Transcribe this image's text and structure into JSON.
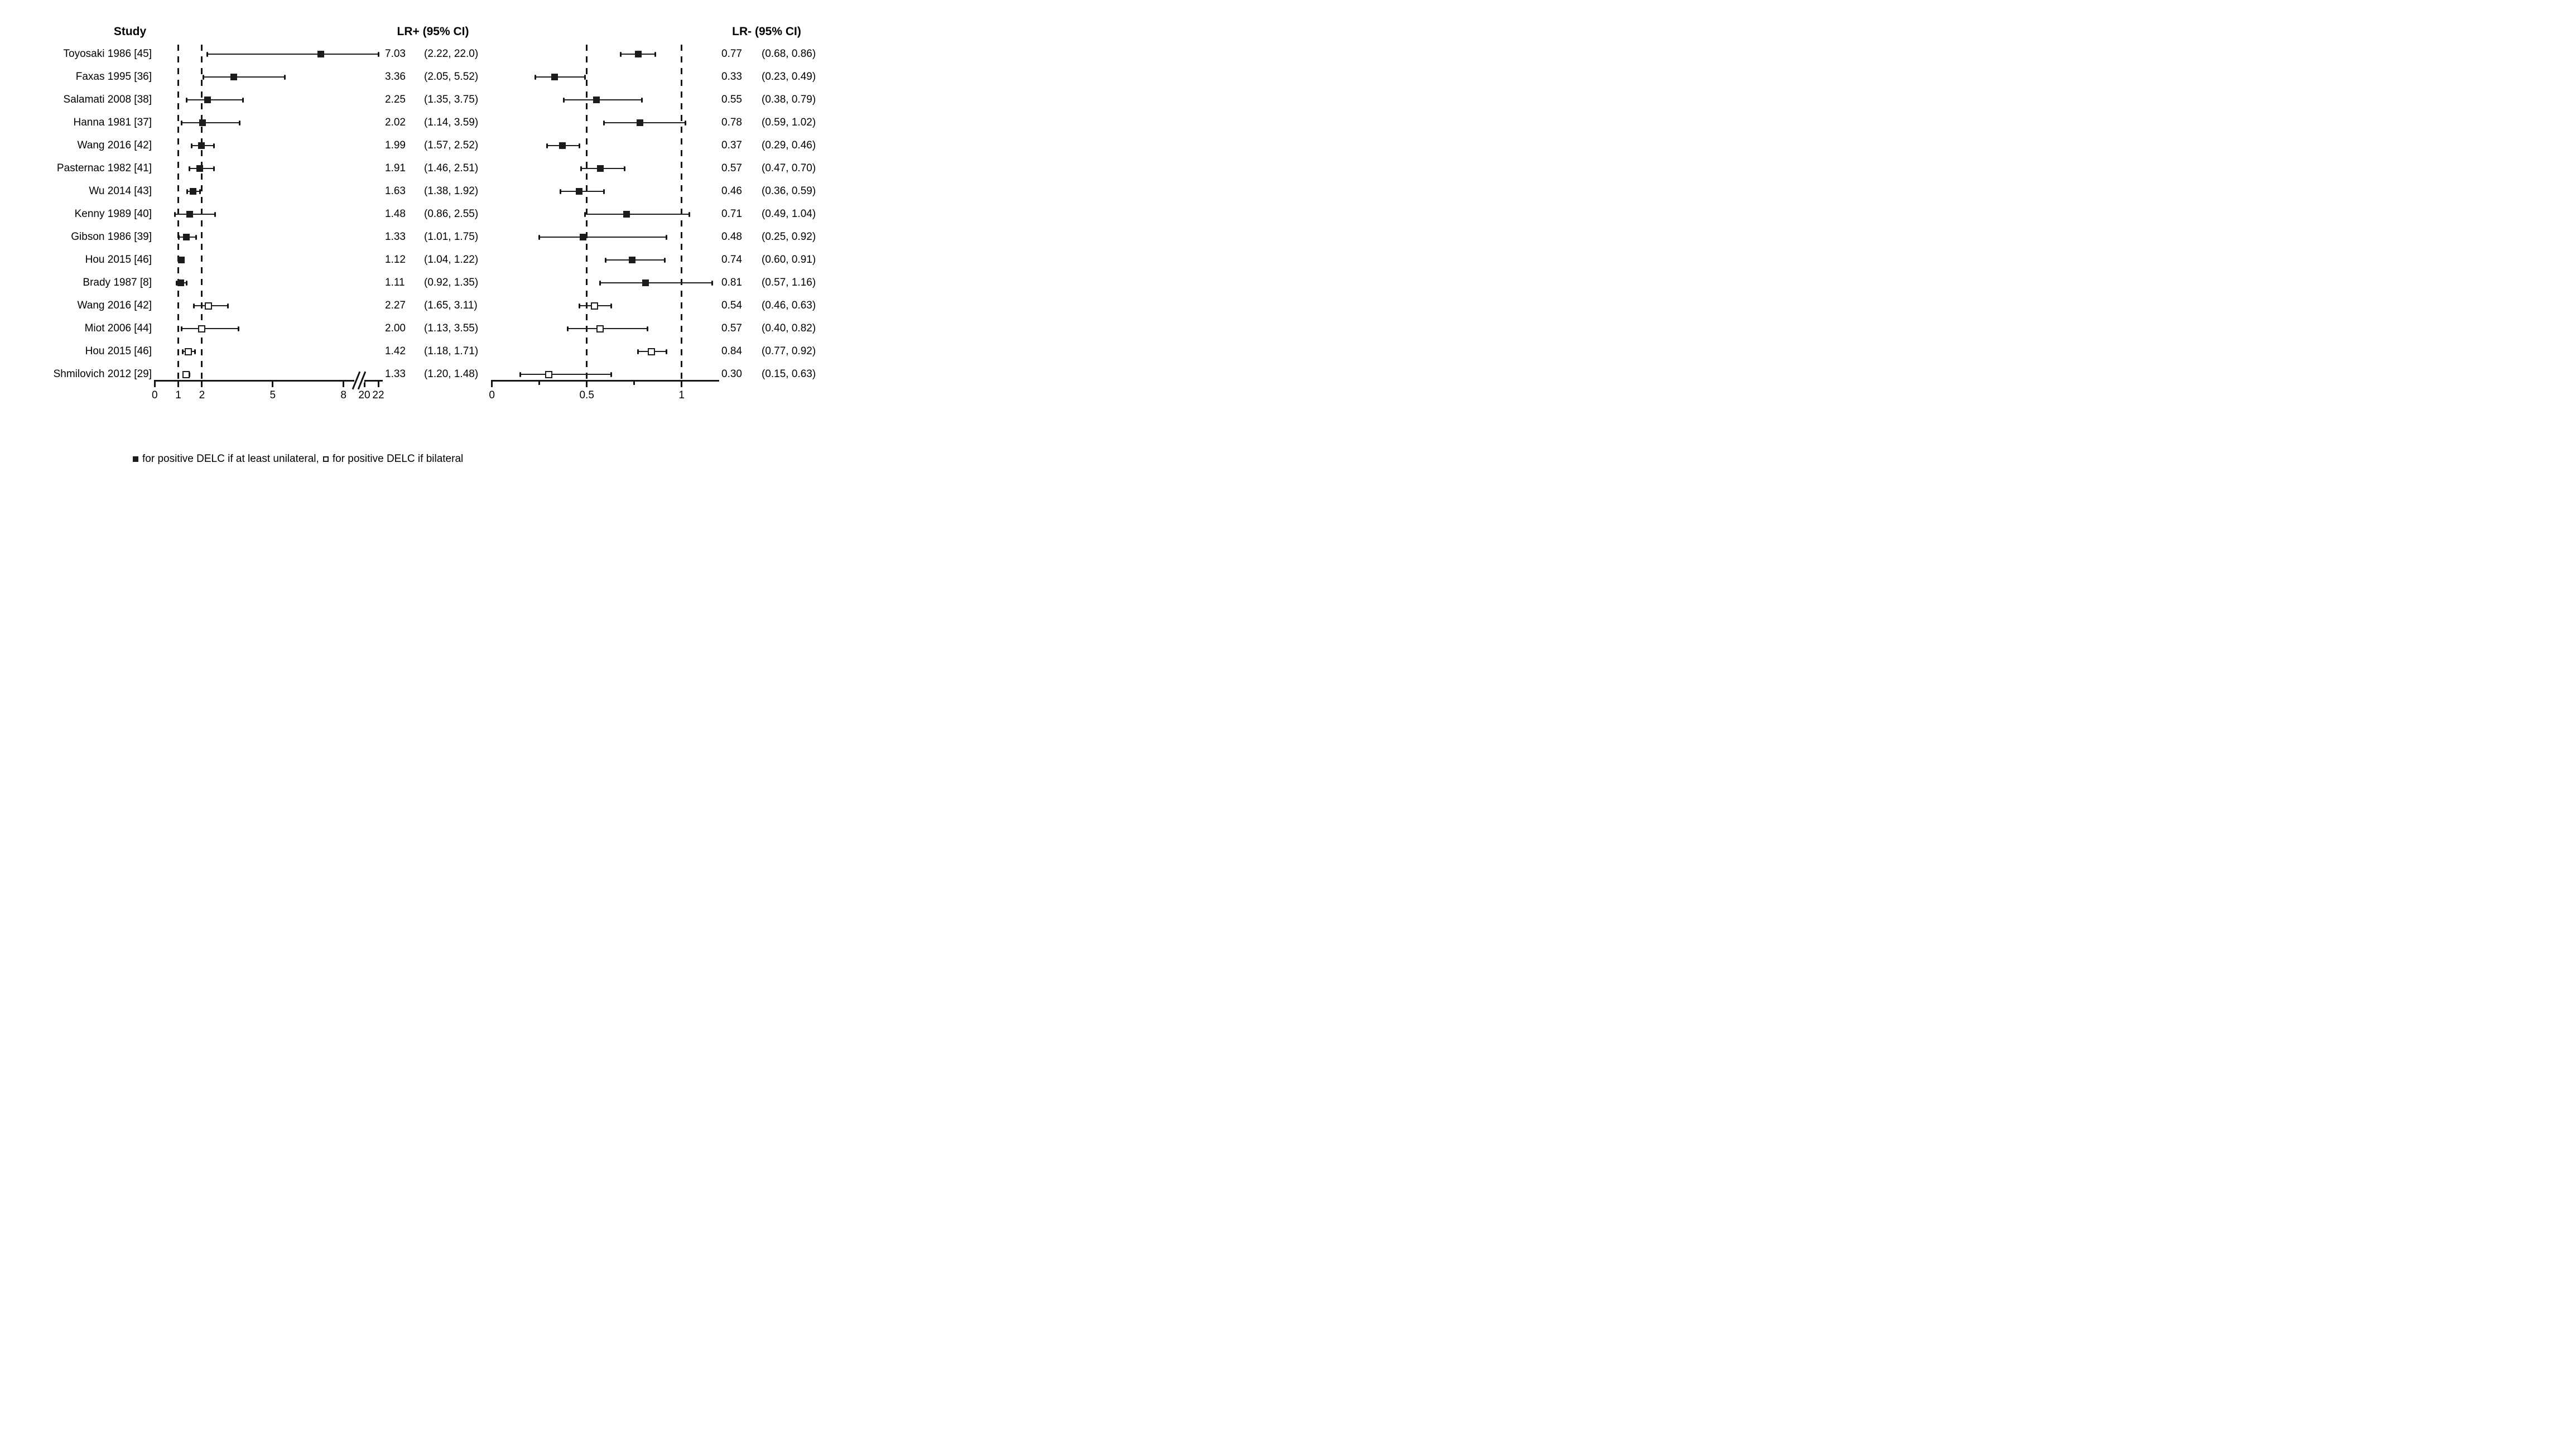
{
  "colors": {
    "ink": "#141414",
    "marker_fill": "#1c1c1c",
    "background": "#ffffff"
  },
  "legend": {
    "filled_text": "for positive DELC if at least unilateral,",
    "open_text": "for positive DELC if bilateral"
  },
  "chart_data": {
    "type": "forest",
    "orientation": "horizontal",
    "study_header": "Study",
    "panels": {
      "lr_pos": {
        "header": "LR+ (95% CI)",
        "axis_ticks": [
          {
            "v": 0,
            "label": "0",
            "major": true
          },
          {
            "v": 1,
            "label": "1",
            "major": true
          },
          {
            "v": 2,
            "label": "2",
            "major": true
          },
          {
            "v": 5,
            "label": "5",
            "major": true
          },
          {
            "v": 8,
            "label": "8",
            "major": true
          },
          {
            "v": 20,
            "label": "20",
            "major": true
          },
          {
            "v": 22,
            "label": "22",
            "major": true
          }
        ],
        "axis_break": {
          "between": [
            8,
            20
          ]
        },
        "reference_lines": [
          1,
          2
        ]
      },
      "lr_neg": {
        "header": "LR- (95% CI)",
        "axis_ticks": [
          {
            "v": 0,
            "label": "0",
            "major": true
          },
          {
            "v": 0.25,
            "major": false
          },
          {
            "v": 0.5,
            "label": "0.5",
            "major": true
          },
          {
            "v": 0.75,
            "major": false
          },
          {
            "v": 1,
            "label": "1",
            "major": true
          }
        ],
        "reference_lines": [
          0.5,
          1
        ]
      }
    },
    "studies": [
      {
        "name": "Toyosaki 1986 [45]",
        "marker": "filled",
        "lr_pos": {
          "est": 7.03,
          "lo": 2.22,
          "hi": 22.0,
          "est_text": "7.03",
          "ci_text": "(2.22, 22.0)"
        },
        "lr_neg": {
          "est": 0.77,
          "lo": 0.68,
          "hi": 0.86,
          "est_text": "0.77",
          "ci_text": "(0.68, 0.86)"
        }
      },
      {
        "name": "Faxas 1995 [36]",
        "marker": "filled",
        "lr_pos": {
          "est": 3.36,
          "lo": 2.05,
          "hi": 5.52,
          "est_text": "3.36",
          "ci_text": "(2.05, 5.52)"
        },
        "lr_neg": {
          "est": 0.33,
          "lo": 0.23,
          "hi": 0.49,
          "est_text": "0.33",
          "ci_text": "(0.23, 0.49)"
        }
      },
      {
        "name": "Salamati 2008 [38]",
        "marker": "filled",
        "lr_pos": {
          "est": 2.25,
          "lo": 1.35,
          "hi": 3.75,
          "est_text": "2.25",
          "ci_text": "(1.35, 3.75)"
        },
        "lr_neg": {
          "est": 0.55,
          "lo": 0.38,
          "hi": 0.79,
          "est_text": "0.55",
          "ci_text": "(0.38, 0.79)"
        }
      },
      {
        "name": "Hanna 1981 [37]",
        "marker": "filled",
        "lr_pos": {
          "est": 2.02,
          "lo": 1.14,
          "hi": 3.59,
          "est_text": "2.02",
          "ci_text": "(1.14, 3.59)"
        },
        "lr_neg": {
          "est": 0.78,
          "lo": 0.59,
          "hi": 1.02,
          "est_text": "0.78",
          "ci_text": "(0.59, 1.02)"
        }
      },
      {
        "name": "Wang 2016 [42]",
        "marker": "filled",
        "lr_pos": {
          "est": 1.99,
          "lo": 1.57,
          "hi": 2.52,
          "est_text": "1.99",
          "ci_text": "(1.57, 2.52)"
        },
        "lr_neg": {
          "est": 0.37,
          "lo": 0.29,
          "hi": 0.46,
          "est_text": "0.37",
          "ci_text": "(0.29, 0.46)"
        }
      },
      {
        "name": "Pasternac 1982 [41]",
        "marker": "filled",
        "lr_pos": {
          "est": 1.91,
          "lo": 1.46,
          "hi": 2.51,
          "est_text": "1.91",
          "ci_text": "(1.46, 2.51)"
        },
        "lr_neg": {
          "est": 0.57,
          "lo": 0.47,
          "hi": 0.7,
          "est_text": "0.57",
          "ci_text": "(0.47, 0.70)"
        }
      },
      {
        "name": "Wu 2014 [43]",
        "marker": "filled",
        "lr_pos": {
          "est": 1.63,
          "lo": 1.38,
          "hi": 1.92,
          "est_text": "1.63",
          "ci_text": "(1.38, 1.92)"
        },
        "lr_neg": {
          "est": 0.46,
          "lo": 0.36,
          "hi": 0.59,
          "est_text": "0.46",
          "ci_text": "(0.36, 0.59)"
        }
      },
      {
        "name": "Kenny 1989 [40]",
        "marker": "filled",
        "lr_pos": {
          "est": 1.48,
          "lo": 0.86,
          "hi": 2.55,
          "est_text": "1.48",
          "ci_text": "(0.86, 2.55)"
        },
        "lr_neg": {
          "est": 0.71,
          "lo": 0.49,
          "hi": 1.04,
          "est_text": "0.71",
          "ci_text": "(0.49, 1.04)"
        }
      },
      {
        "name": "Gibson 1986 [39]",
        "marker": "filled",
        "lr_pos": {
          "est": 1.33,
          "lo": 1.01,
          "hi": 1.75,
          "est_text": "1.33",
          "ci_text": "(1.01, 1.75)"
        },
        "lr_neg": {
          "est": 0.48,
          "lo": 0.25,
          "hi": 0.92,
          "est_text": "0.48",
          "ci_text": "(0.25, 0.92)"
        }
      },
      {
        "name": "Hou 2015 [46]",
        "marker": "filled",
        "lr_pos": {
          "est": 1.12,
          "lo": 1.04,
          "hi": 1.22,
          "est_text": "1.12",
          "ci_text": "(1.04, 1.22)"
        },
        "lr_neg": {
          "est": 0.74,
          "lo": 0.6,
          "hi": 0.91,
          "est_text": "0.74",
          "ci_text": "(0.60, 0.91)"
        }
      },
      {
        "name": "Brady 1987 [8]",
        "marker": "filled",
        "lr_pos": {
          "est": 1.11,
          "lo": 0.92,
          "hi": 1.35,
          "est_text": "1.11",
          "ci_text": "(0.92, 1.35)"
        },
        "lr_neg": {
          "est": 0.81,
          "lo": 0.57,
          "hi": 1.16,
          "est_text": "0.81",
          "ci_text": "(0.57, 1.16)"
        }
      },
      {
        "name": "Wang 2016 [42]",
        "marker": "open",
        "lr_pos": {
          "est": 2.27,
          "lo": 1.65,
          "hi": 3.11,
          "est_text": "2.27",
          "ci_text": "(1.65, 3.11)"
        },
        "lr_neg": {
          "est": 0.54,
          "lo": 0.46,
          "hi": 0.63,
          "est_text": "0.54",
          "ci_text": "(0.46, 0.63)"
        }
      },
      {
        "name": "Miot 2006 [44]",
        "marker": "open",
        "lr_pos": {
          "est": 2.0,
          "lo": 1.13,
          "hi": 3.55,
          "est_text": "2.00",
          "ci_text": "(1.13, 3.55)"
        },
        "lr_neg": {
          "est": 0.57,
          "lo": 0.4,
          "hi": 0.82,
          "est_text": "0.57",
          "ci_text": "(0.40, 0.82)"
        }
      },
      {
        "name": "Hou 2015 [46]",
        "marker": "open",
        "lr_pos": {
          "est": 1.42,
          "lo": 1.18,
          "hi": 1.71,
          "est_text": "1.42",
          "ci_text": "(1.18, 1.71)"
        },
        "lr_neg": {
          "est": 0.84,
          "lo": 0.77,
          "hi": 0.92,
          "est_text": "0.84",
          "ci_text": "(0.77, 0.92)"
        }
      },
      {
        "name": "Shmilovich 2012 [29]",
        "marker": "open",
        "lr_pos": {
          "est": 1.33,
          "lo": 1.2,
          "hi": 1.48,
          "est_text": "1.33",
          "ci_text": "(1.20, 1.48)"
        },
        "lr_neg": {
          "est": 0.3,
          "lo": 0.15,
          "hi": 0.63,
          "est_text": "0.30",
          "ci_text": "(0.15, 0.63)"
        }
      }
    ]
  }
}
